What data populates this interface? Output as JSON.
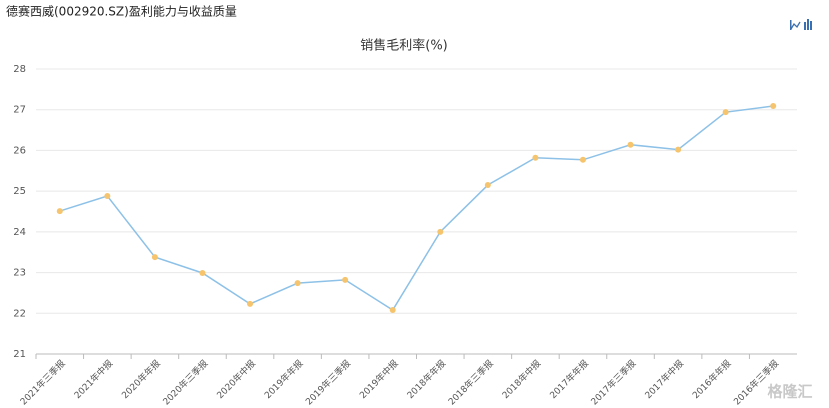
{
  "header": {
    "title": "德赛西威(002920.SZ)盈利能力与收益质量"
  },
  "watermark": "格隆汇",
  "chart_data": {
    "type": "line",
    "title": "销售毛利率(%)",
    "categories": [
      "2021年三季报",
      "2021年中报",
      "2020年年报",
      "2020年三季报",
      "2020年中报",
      "2019年年报",
      "2019年三季报",
      "2019年中报",
      "2018年年报",
      "2018年三季报",
      "2018年中报",
      "2017年年报",
      "2017年三季报",
      "2017年中报",
      "2016年年报",
      "2016年三季报"
    ],
    "series": [
      {
        "name": "销售毛利率",
        "color": "#8dc1e7",
        "marker_color": "#f6c46c",
        "values": [
          24.51,
          24.88,
          23.38,
          22.99,
          22.23,
          22.74,
          22.82,
          22.08,
          24.0,
          25.15,
          25.82,
          25.77,
          26.14,
          26.02,
          26.94,
          27.09
        ]
      }
    ],
    "ylim": [
      21,
      28
    ],
    "yticks": [
      21,
      22,
      23,
      24,
      25,
      26,
      27,
      28
    ],
    "grid": true
  }
}
